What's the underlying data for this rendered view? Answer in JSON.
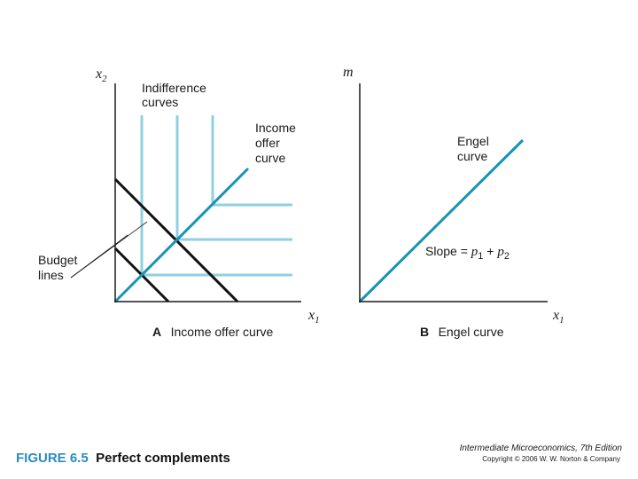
{
  "panel_a": {
    "y_axis_label": "x",
    "y_axis_sub": "2",
    "x_axis_label": "x",
    "x_axis_sub": "1",
    "indiff_label": [
      "Indifference",
      "curves"
    ],
    "iocurve_label": [
      "Income",
      "offer",
      "curve"
    ],
    "budget_label": [
      "Budget",
      "lines"
    ],
    "caption_letter": "A",
    "caption_text": "Income offer curve"
  },
  "panel_b": {
    "y_axis_label": "m",
    "x_axis_label": "x",
    "x_axis_sub": "1",
    "engel_label": [
      "Engel",
      "curve"
    ],
    "slope_text": "Slope = ",
    "slope_p1": "p",
    "slope_p1_sub": "1",
    "slope_plus": " + ",
    "slope_p2": "p",
    "slope_p2_sub": "2",
    "caption_letter": "B",
    "caption_text": "Engel curve"
  },
  "footer": {
    "figure_tag": "FIGURE 6.5",
    "figure_title": "Perfect complements",
    "book_title": "Intermediate Microeconomics, 7th Edition",
    "copyright": "Copyright © 2006 W. W. Norton & Company"
  },
  "colors": {
    "curve_light": "#8fd0e2",
    "curve_dark": "#1993b5",
    "budget": "#111111",
    "axis": "#1a1a1a",
    "figure_tag": "#2a8ac1"
  }
}
